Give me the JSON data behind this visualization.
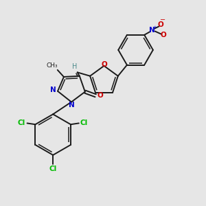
{
  "background_color": "#e6e6e6",
  "bond_color": "#1a1a1a",
  "N_color": "#0000cc",
  "O_color": "#cc0000",
  "Cl_color": "#00bb00",
  "H_color": "#4a8a8a",
  "figsize": [
    3.0,
    3.0
  ],
  "dpi": 100,
  "xlim": [
    0,
    10
  ],
  "ylim": [
    0,
    10
  ]
}
